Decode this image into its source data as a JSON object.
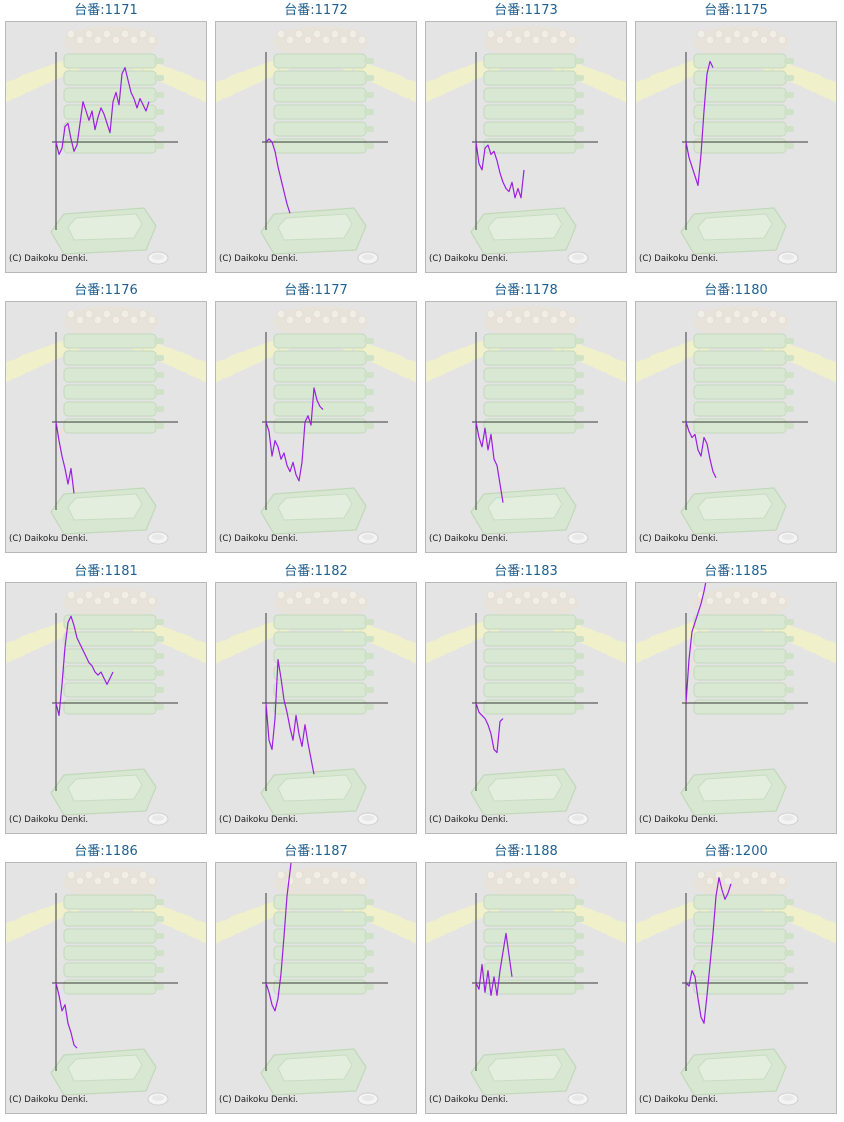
{
  "colors": {
    "series_line": "#9a1fe0",
    "axis_line": "#3a3a3a",
    "title_text": "#1f5f8f",
    "panel_bg": "#e4e4e4"
  },
  "copyright": "(C) Daikoku Denki.",
  "chart_data": [
    {
      "type": "line",
      "title": "台番:1171",
      "y": [
        0.0,
        -0.4,
        -0.2,
        0.5,
        0.6,
        0.1,
        -0.3,
        -0.1,
        0.6,
        1.3,
        1.0,
        0.7,
        1.0,
        0.4,
        0.8,
        1.1,
        0.9,
        0.6,
        0.3,
        1.3,
        1.6,
        1.2,
        2.2,
        2.4,
        2.0,
        1.6,
        1.4,
        1.1,
        1.4,
        1.2,
        1.0,
        1.3
      ]
    },
    {
      "type": "line",
      "title": "台番:1172",
      "y": [
        0.0,
        0.1,
        0.0,
        -0.3,
        -0.8,
        -1.2,
        -1.6,
        -2.0,
        -2.3
      ]
    },
    {
      "type": "line",
      "title": "台番:1173",
      "y": [
        0.0,
        -0.7,
        -0.9,
        -0.2,
        -0.1,
        -0.4,
        -0.3,
        -0.6,
        -1.0,
        -1.3,
        -1.5,
        -1.6,
        -1.3,
        -1.8,
        -1.5,
        -1.8,
        -0.9
      ]
    },
    {
      "type": "line",
      "title": "台番:1175",
      "y": [
        0.0,
        -0.5,
        -0.8,
        -1.1,
        -1.4,
        -0.4,
        1.0,
        2.2,
        2.6,
        2.4
      ]
    },
    {
      "type": "line",
      "title": "台番:1176",
      "y": [
        0.0,
        -0.6,
        -1.1,
        -1.5,
        -2.0,
        -1.5,
        -2.3
      ]
    },
    {
      "type": "line",
      "title": "台番:1177",
      "y": [
        0.0,
        -0.3,
        -1.1,
        -0.6,
        -0.8,
        -1.2,
        -1.0,
        -1.4,
        -1.6,
        -1.3,
        -1.7,
        -1.9,
        -1.3,
        0.0,
        0.2,
        -0.1,
        1.1,
        0.7,
        0.5,
        0.4
      ]
    },
    {
      "type": "line",
      "title": "台番:1178",
      "y": [
        0.0,
        -0.5,
        -0.8,
        -0.2,
        -0.9,
        -0.4,
        -1.2,
        -1.4,
        -2.0,
        -2.6
      ]
    },
    {
      "type": "line",
      "title": "台番:1180",
      "y": [
        0.0,
        -0.3,
        -0.5,
        -0.4,
        -0.9,
        -1.1,
        -0.5,
        -0.7,
        -1.2,
        -1.6,
        -1.8
      ]
    },
    {
      "type": "line",
      "title": "台番:1181",
      "y": [
        0.0,
        -0.4,
        0.6,
        1.8,
        2.6,
        2.8,
        2.5,
        2.1,
        1.9,
        1.7,
        1.5,
        1.3,
        1.2,
        1.0,
        0.9,
        1.0,
        0.8,
        0.6,
        0.8,
        1.0
      ]
    },
    {
      "type": "line",
      "title": "台番:1182",
      "y": [
        0.0,
        -1.2,
        -1.5,
        -0.5,
        1.4,
        0.8,
        0.1,
        -0.3,
        -0.8,
        -1.2,
        -0.4,
        -1.0,
        -1.4,
        -0.7,
        -1.3,
        -1.8,
        -2.3
      ]
    },
    {
      "type": "line",
      "title": "台番:1183",
      "y": [
        0.0,
        -0.3,
        -0.4,
        -0.5,
        -0.7,
        -1.0,
        -1.5,
        -1.6,
        -0.6,
        -0.5
      ]
    },
    {
      "type": "line",
      "title": "台番:1185",
      "y": [
        0.0,
        1.4,
        2.3,
        2.6,
        2.9,
        3.2,
        3.6,
        4.1,
        4.5,
        4.9,
        5.1,
        5.4,
        5.6,
        5.5,
        5.3,
        5.2
      ]
    },
    {
      "type": "line",
      "title": "台番:1186",
      "y": [
        0.0,
        -0.4,
        -0.9,
        -0.7,
        -1.3,
        -1.6,
        -2.0,
        -2.1
      ]
    },
    {
      "type": "line",
      "title": "台番:1187",
      "y": [
        0.0,
        -0.3,
        -0.7,
        -0.9,
        -0.5,
        0.3,
        1.5,
        2.8,
        3.6,
        4.4,
        5.2,
        6.0
      ]
    },
    {
      "type": "line",
      "title": "台番:1188",
      "y": [
        0.0,
        -0.2,
        0.6,
        -0.3,
        0.4,
        -0.4,
        0.2,
        -0.4,
        0.4,
        1.0,
        1.6,
        0.9,
        0.2
      ]
    },
    {
      "type": "line",
      "title": "台番:1200",
      "y": [
        0.0,
        -0.1,
        0.4,
        0.2,
        -0.5,
        -1.1,
        -1.3,
        -0.4,
        0.6,
        1.6,
        2.8,
        3.4,
        3.0,
        2.7,
        2.9,
        3.2
      ]
    }
  ]
}
